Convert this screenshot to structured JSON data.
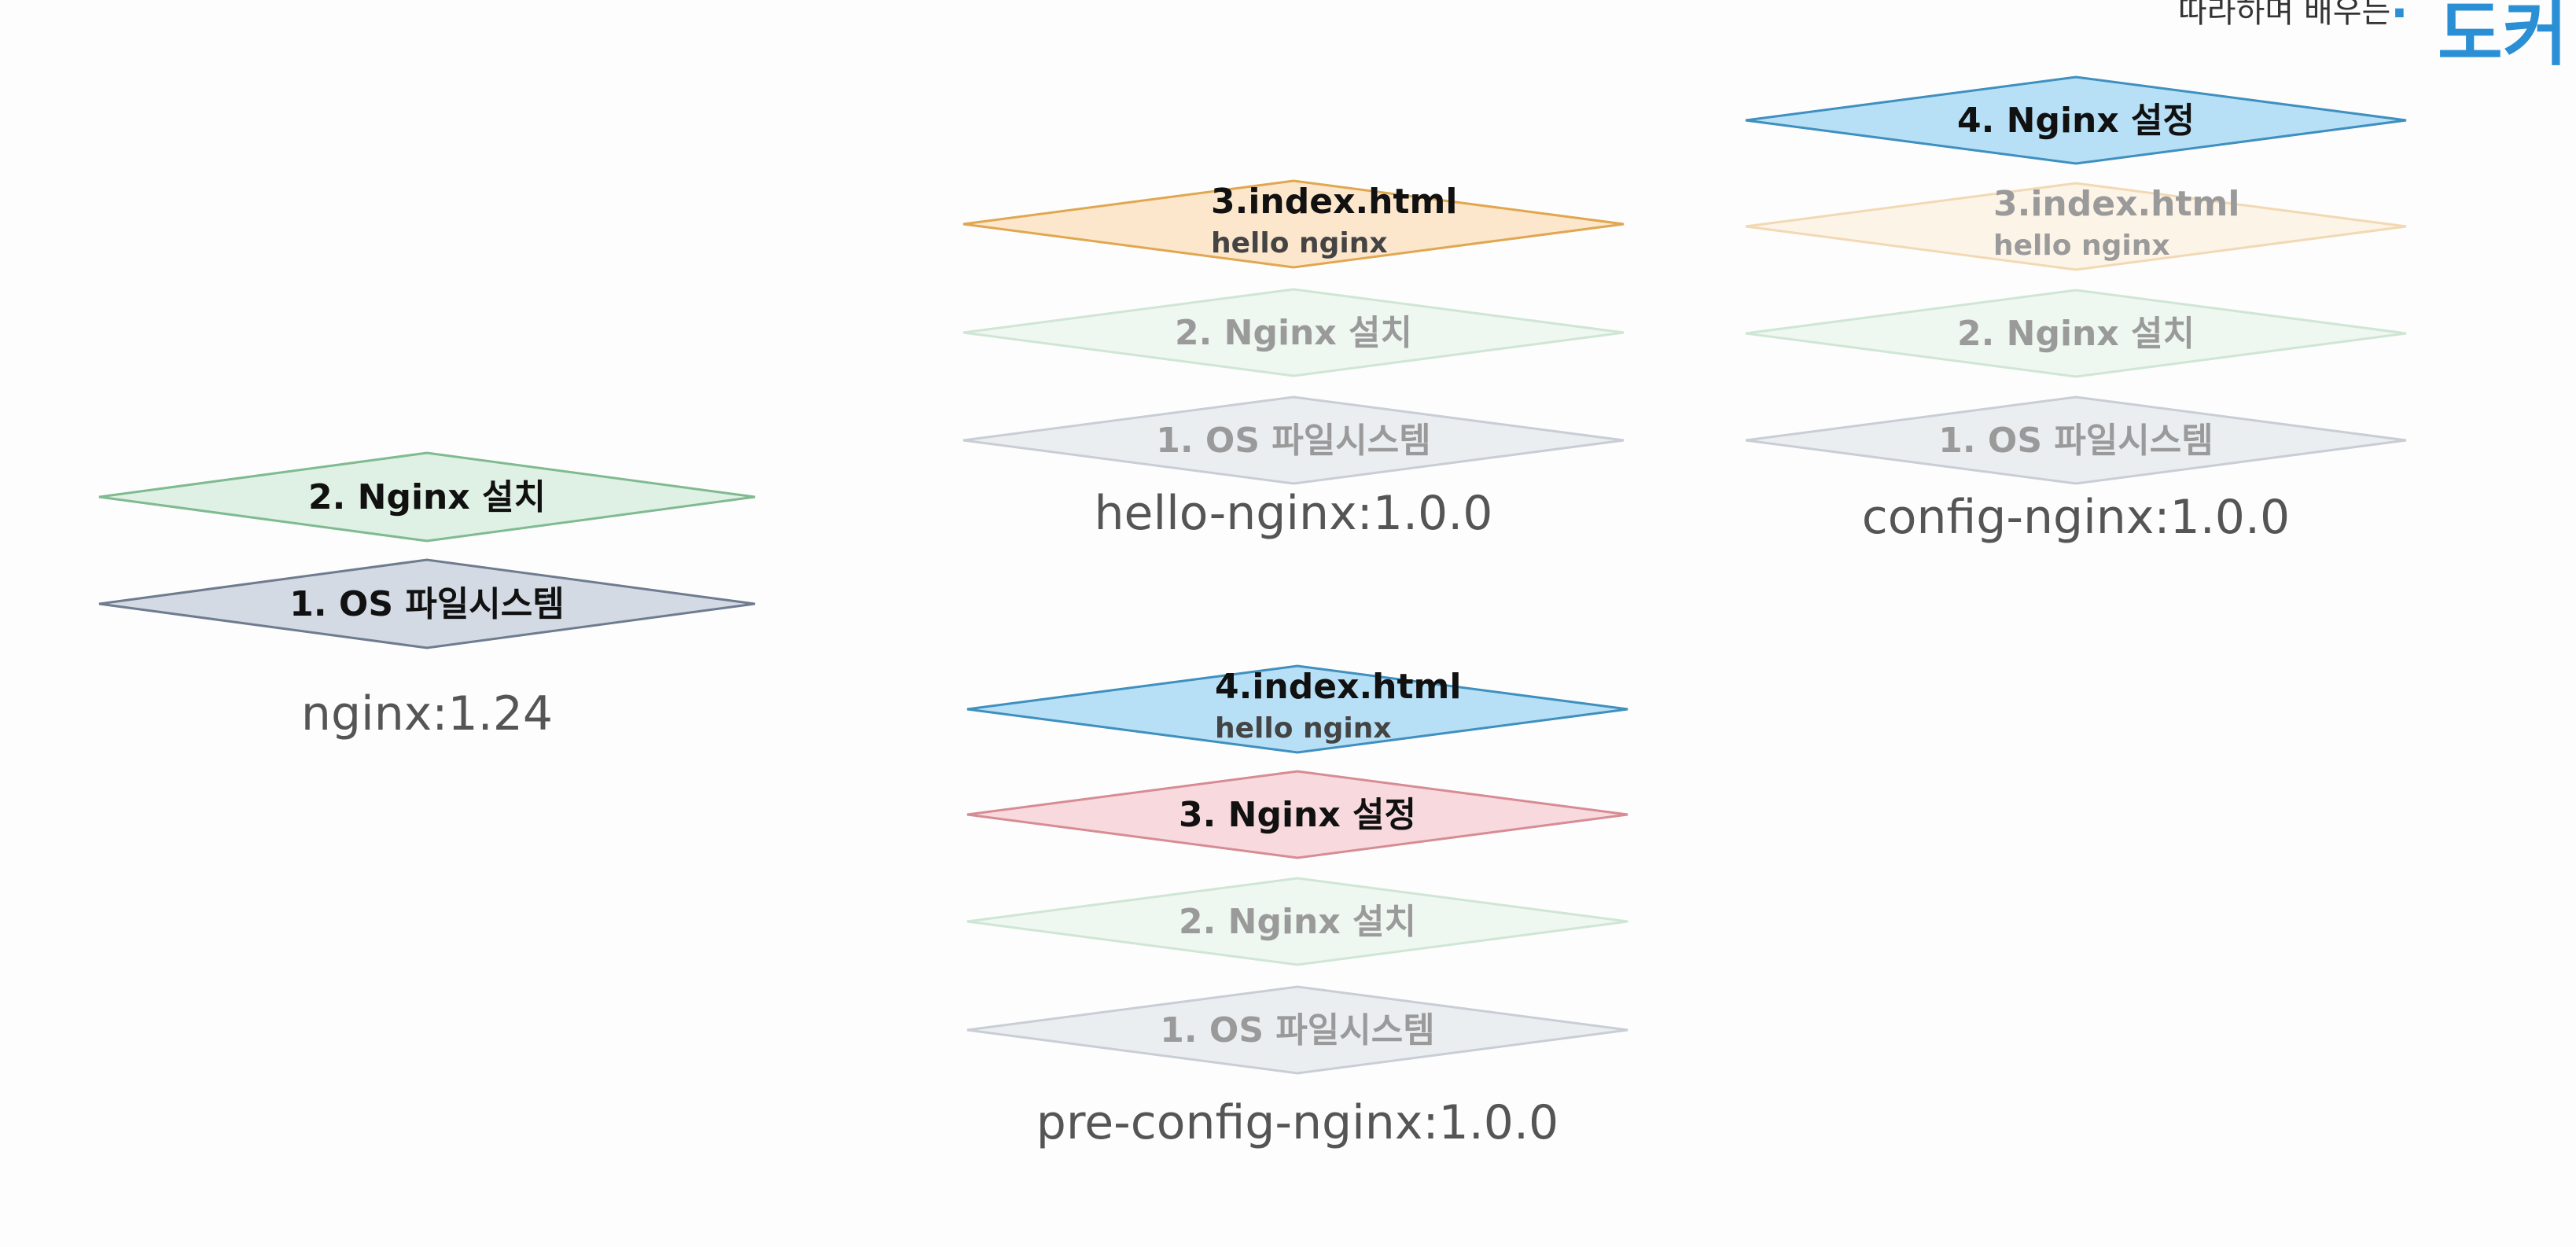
{
  "brand": {
    "subtitle": "따라하며 배우는",
    "separator": "·",
    "title": "도커"
  },
  "colors": {
    "os": {
      "fill": "#cbd3df",
      "stroke": "#6f7c8f"
    },
    "install": {
      "fill": "#d9eedf",
      "stroke": "#7fba91"
    },
    "html": {
      "fill": "#fbe3c4",
      "stroke": "#e0a750"
    },
    "config_blue": {
      "fill": "#aadbf5",
      "stroke": "#3f8fbf"
    },
    "config_red": {
      "fill": "#f7d3d8",
      "stroke": "#d78c94"
    },
    "faded_os": {
      "fill": "#e9ecf0",
      "stroke": "#c9ced6"
    },
    "faded_install": {
      "fill": "#edf6ef",
      "stroke": "#cfe6d5"
    },
    "faded_html": {
      "fill": "#fdf3e6",
      "stroke": "#f2d9b4"
    },
    "label": "#111111",
    "faded_label": "#9a9a9a"
  },
  "stacks": [
    {
      "id": "nginx-base",
      "caption": "nginx:1.24",
      "layers": [
        {
          "id": "os",
          "title": "1. OS 파일시스템",
          "color": "os",
          "faded": false
        },
        {
          "id": "install",
          "title": "2. Nginx 설치",
          "color": "install",
          "faded": false
        }
      ]
    },
    {
      "id": "hello-nginx",
      "caption": "hello-nginx:1.0.0",
      "layers": [
        {
          "id": "os",
          "title": "1. OS 파일시스템",
          "color": "faded_os",
          "faded": true
        },
        {
          "id": "install",
          "title": "2. Nginx 설치",
          "color": "faded_install",
          "faded": true
        },
        {
          "id": "html",
          "title": "3.index.html",
          "subtitle": "hello nginx",
          "color": "html",
          "faded": false
        }
      ]
    },
    {
      "id": "config-nginx",
      "caption": "config-nginx:1.0.0",
      "layers": [
        {
          "id": "os",
          "title": "1. OS 파일시스템",
          "color": "faded_os",
          "faded": true
        },
        {
          "id": "install",
          "title": "2. Nginx 설치",
          "color": "faded_install",
          "faded": true
        },
        {
          "id": "html",
          "title": "3.index.html",
          "subtitle": "hello nginx",
          "color": "faded_html",
          "faded": true
        },
        {
          "id": "config",
          "title": "4. Nginx 설정",
          "color": "config_blue",
          "faded": false
        }
      ]
    },
    {
      "id": "pre-config-nginx",
      "caption": "pre-config-nginx:1.0.0",
      "layers": [
        {
          "id": "os",
          "title": "1. OS 파일시스템",
          "color": "faded_os",
          "faded": true
        },
        {
          "id": "install",
          "title": "2. Nginx 설치",
          "color": "faded_install",
          "faded": true
        },
        {
          "id": "config",
          "title": "3. Nginx 설정",
          "color": "config_red",
          "faded": false
        },
        {
          "id": "html",
          "title": "4.index.html",
          "subtitle": "hello nginx",
          "color": "config_blue",
          "faded": false
        }
      ]
    }
  ]
}
